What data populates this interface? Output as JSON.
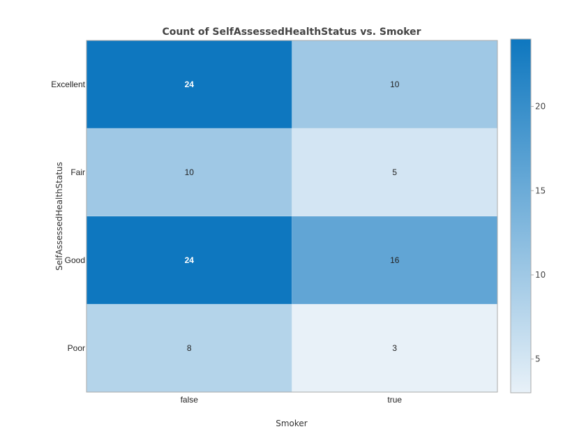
{
  "chart_data": {
    "type": "heatmap",
    "title": "Count of SelfAssessedHealthStatus vs. Smoker",
    "xlabel": "Smoker",
    "ylabel": "SelfAssessedHealthStatus",
    "x_categories": [
      "false",
      "true"
    ],
    "y_categories": [
      "Excellent",
      "Fair",
      "Good",
      "Poor"
    ],
    "values": [
      [
        24,
        10
      ],
      [
        10,
        5
      ],
      [
        24,
        16
      ],
      [
        8,
        3
      ]
    ],
    "colorbar": {
      "min": 3,
      "max": 24,
      "ticks": [
        5,
        10,
        15,
        20
      ]
    },
    "colors": {
      "low": "#e8f1f8",
      "high": "#0e77bf",
      "frame": "#aaaaaa",
      "dark_text": "#222222",
      "light_text": "#ffffff"
    }
  }
}
